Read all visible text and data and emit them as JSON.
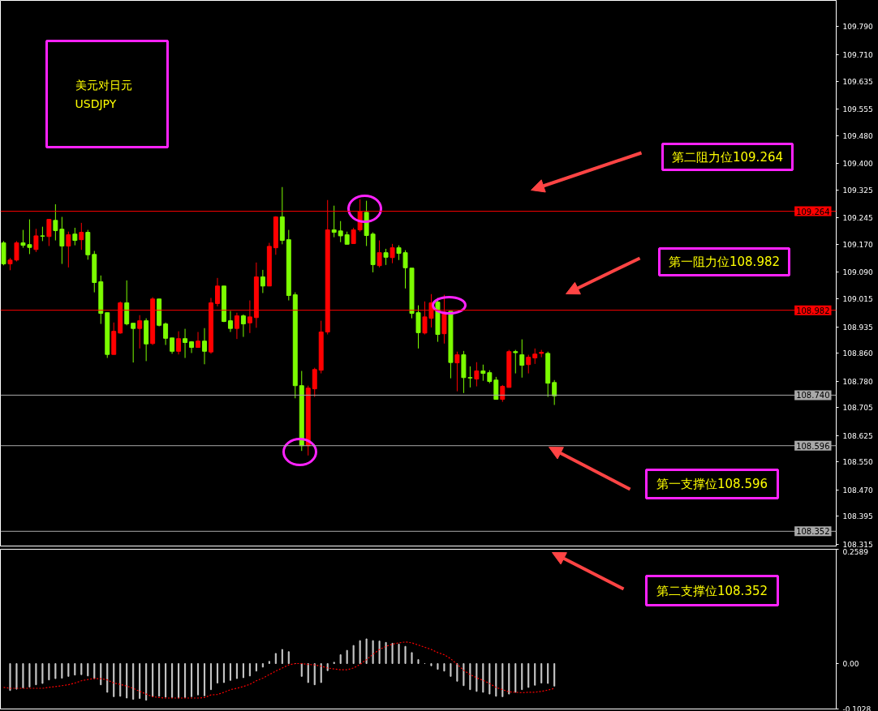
{
  "chart_data": [
    {
      "type": "candlestick",
      "title": "美元对日元",
      "subtitle": "USDJPY",
      "tick_labels": "y",
      "categories": [
        null,
        null,
        null,
        null,
        null,
        null,
        null,
        null,
        null,
        null,
        null,
        null,
        null,
        null,
        null,
        null,
        null,
        null,
        null,
        null,
        null,
        null,
        null,
        null,
        null,
        null,
        null,
        null,
        null,
        null,
        null,
        null,
        null,
        null,
        null,
        null,
        null,
        null,
        null,
        null,
        null,
        null,
        null,
        null,
        null,
        null,
        null,
        null,
        null,
        null,
        null,
        null,
        null,
        null,
        null,
        null,
        null,
        null,
        null,
        null,
        null,
        null,
        null,
        null,
        null,
        null,
        null,
        null,
        null,
        null,
        null,
        null,
        null,
        null,
        null,
        null,
        null,
        null,
        null,
        null,
        null,
        null,
        null,
        null,
        null,
        null,
        null,
        null,
        null,
        null,
        null,
        null,
        null,
        null,
        null,
        null,
        null,
        null,
        null,
        null,
        null,
        null,
        null,
        null,
        null,
        null,
        null,
        null,
        null,
        null,
        null,
        null,
        null,
        null,
        null,
        null,
        null,
        null,
        null,
        null,
        null,
        null,
        null,
        null,
        null,
        null,
        null,
        null,
        null
      ],
      "ohlc": [
        [
          109.174,
          109.179,
          109.11,
          109.114
        ],
        [
          109.114,
          109.131,
          109.096,
          109.125
        ],
        [
          109.125,
          109.179,
          109.121,
          109.174
        ],
        [
          109.174,
          109.211,
          109.16,
          109.167
        ],
        [
          109.169,
          109.241,
          109.142,
          109.161
        ],
        [
          109.155,
          109.214,
          109.148,
          109.194
        ],
        [
          109.194,
          109.22,
          109.179,
          109.193
        ],
        [
          109.192,
          109.241,
          109.165,
          109.241
        ],
        [
          109.238,
          109.284,
          109.181,
          109.209
        ],
        [
          109.213,
          109.248,
          109.114,
          109.165
        ],
        [
          109.165,
          109.206,
          109.104,
          109.197
        ],
        [
          109.199,
          109.217,
          109.167,
          109.181
        ],
        [
          109.183,
          109.231,
          109.154,
          109.204
        ],
        [
          109.204,
          109.211,
          109.126,
          109.14
        ],
        [
          109.141,
          109.151,
          109.033,
          109.061
        ],
        [
          109.063,
          109.081,
          108.943,
          108.973
        ],
        [
          108.975,
          108.975,
          108.846,
          108.856
        ],
        [
          108.856,
          108.947,
          108.856,
          108.922
        ],
        [
          108.917,
          109.007,
          108.915,
          109.003
        ],
        [
          109.003,
          109.067,
          108.939,
          108.943
        ],
        [
          108.945,
          108.945,
          108.833,
          108.93
        ],
        [
          108.93,
          108.968,
          108.873,
          108.952
        ],
        [
          108.952,
          108.959,
          108.837,
          108.886
        ],
        [
          108.887,
          109.019,
          108.883,
          109.014
        ],
        [
          109.014,
          109.014,
          108.936,
          108.939
        ],
        [
          108.943,
          108.947,
          108.883,
          108.902
        ],
        [
          108.903,
          108.903,
          108.858,
          108.865
        ],
        [
          108.865,
          108.922,
          108.856,
          108.901
        ],
        [
          108.901,
          108.929,
          108.846,
          108.89
        ],
        [
          108.892,
          108.894,
          108.86,
          108.876
        ],
        [
          108.876,
          108.92,
          108.876,
          108.894
        ],
        [
          108.894,
          108.931,
          108.828,
          108.865
        ],
        [
          108.863,
          109.017,
          108.858,
          109.003
        ],
        [
          109.001,
          109.074,
          108.993,
          109.051
        ],
        [
          109.051,
          109.051,
          108.948,
          108.95
        ],
        [
          108.952,
          108.98,
          108.92,
          108.93
        ],
        [
          108.93,
          108.975,
          108.9,
          108.966
        ],
        [
          108.966,
          108.97,
          108.906,
          108.943
        ],
        [
          108.946,
          109.01,
          108.917,
          108.963
        ],
        [
          108.961,
          109.118,
          108.932,
          109.077
        ],
        [
          109.077,
          109.097,
          109.031,
          109.051
        ],
        [
          109.051,
          109.174,
          109.051,
          109.164
        ],
        [
          109.16,
          109.25,
          109.14,
          109.248
        ],
        [
          109.248,
          109.333,
          109.17,
          109.181
        ],
        [
          109.183,
          109.211,
          109.01,
          109.024
        ],
        [
          109.026,
          109.033,
          108.731,
          108.767
        ],
        [
          108.767,
          108.809,
          108.581,
          108.596
        ],
        [
          108.596,
          108.767,
          108.568,
          108.76
        ],
        [
          108.758,
          108.818,
          108.735,
          108.813
        ],
        [
          108.811,
          108.952,
          108.802,
          108.92
        ],
        [
          108.92,
          109.296,
          108.913,
          109.211
        ],
        [
          109.211,
          109.28,
          109.19,
          109.204
        ],
        [
          109.208,
          109.236,
          109.176,
          109.194
        ],
        [
          109.197,
          109.206,
          109.17,
          109.17
        ],
        [
          109.172,
          109.217,
          109.172,
          109.211
        ],
        [
          109.211,
          109.298,
          109.206,
          109.263
        ],
        [
          109.261,
          109.294,
          109.165,
          109.195
        ],
        [
          109.199,
          109.204,
          109.09,
          109.112
        ],
        [
          109.109,
          109.181,
          109.104,
          109.146
        ],
        [
          109.146,
          109.157,
          109.111,
          109.133
        ],
        [
          109.132,
          109.171,
          109.116,
          109.16
        ],
        [
          109.16,
          109.167,
          109.125,
          109.144
        ],
        [
          109.146,
          109.153,
          109.044,
          109.103
        ],
        [
          109.102,
          109.102,
          108.959,
          108.973
        ],
        [
          108.975,
          108.996,
          108.873,
          108.918
        ],
        [
          108.917,
          109.007,
          108.913,
          108.963
        ],
        [
          108.959,
          109.028,
          108.933,
          109.003
        ],
        [
          109.005,
          109.017,
          108.892,
          108.913
        ],
        [
          108.915,
          109.026,
          108.887,
          108.977
        ],
        [
          108.979,
          108.979,
          108.788,
          108.833
        ],
        [
          108.832,
          108.864,
          108.751,
          108.855
        ],
        [
          108.855,
          108.866,
          108.746,
          108.79
        ],
        [
          108.79,
          108.822,
          108.762,
          108.789
        ],
        [
          108.786,
          108.834,
          108.765,
          108.809
        ],
        [
          108.809,
          108.827,
          108.781,
          108.802
        ],
        [
          108.804,
          108.811,
          108.774,
          108.779
        ],
        [
          108.783,
          108.792,
          108.728,
          108.728
        ],
        [
          108.728,
          108.769,
          108.721,
          108.765
        ],
        [
          108.762,
          108.869,
          108.762,
          108.864
        ],
        [
          108.864,
          108.869,
          108.802,
          108.861
        ],
        [
          108.855,
          108.899,
          108.79,
          108.825
        ],
        [
          108.827,
          108.855,
          108.802,
          108.848
        ],
        [
          108.846,
          108.873,
          108.829,
          108.857
        ],
        [
          108.859,
          108.869,
          108.848,
          108.862
        ],
        [
          108.859,
          108.864,
          108.735,
          108.774
        ],
        [
          108.776,
          108.783,
          108.712,
          108.738
        ],
        null,
        null,
        null,
        null,
        null,
        null,
        null,
        null,
        null,
        null,
        null,
        null,
        null,
        null,
        null,
        null,
        null,
        null,
        null,
        null,
        null,
        null,
        null,
        null,
        null,
        null,
        null,
        null,
        null,
        null,
        null,
        null,
        null,
        null,
        null,
        null,
        null,
        null,
        null,
        null,
        null,
        null,
        null
      ],
      "colors": [
        "#7cfc00",
        "#ff0000",
        "#ff0000",
        "#7cfc00",
        "#7cfc00",
        "#ff0000",
        "#7cfc00",
        "#ff0000",
        "#7cfc00",
        "#7cfc00",
        "#ff0000",
        "#7cfc00",
        "#ff0000",
        "#7cfc00",
        "#7cfc00",
        "#7cfc00",
        "#7cfc00",
        "#ff0000",
        "#ff0000",
        "#7cfc00",
        "#7cfc00",
        "#ff0000",
        "#7cfc00",
        "#ff0000",
        "#7cfc00",
        "#7cfc00",
        "#7cfc00",
        "#ff0000",
        "#7cfc00",
        "#7cfc00",
        "#ff0000",
        "#7cfc00",
        "#ff0000",
        "#ff0000",
        "#7cfc00",
        "#7cfc00",
        "#ff0000",
        "#7cfc00",
        "#ff0000",
        "#ff0000",
        "#7cfc00",
        "#ff0000",
        "#ff0000",
        "#7cfc00",
        "#7cfc00",
        "#7cfc00",
        "#7cfc00",
        "#ff0000",
        "#ff0000",
        "#ff0000",
        "#ff0000",
        "#7cfc00",
        "#7cfc00",
        "#7cfc00",
        "#ff0000",
        "#ff0000",
        "#7cfc00",
        "#7cfc00",
        "#ff0000",
        "#7cfc00",
        "#ff0000",
        "#7cfc00",
        "#7cfc00",
        "#7cfc00",
        "#7cfc00",
        "#ff0000",
        "#ff0000",
        "#7cfc00",
        "#ff0000",
        "#7cfc00",
        "#ff0000",
        "#7cfc00",
        "#7cfc00",
        "#ff0000",
        "#7cfc00",
        "#7cfc00",
        "#7cfc00",
        "#ff0000",
        "#ff0000",
        "#7cfc00",
        "#7cfc00",
        "#ff0000",
        "#ff0000",
        "#ff0000",
        "#7cfc00",
        "#7cfc00",
        null,
        null,
        null,
        null,
        null,
        null,
        null,
        null,
        null,
        null,
        null,
        null,
        null,
        null,
        null,
        null,
        null,
        null,
        null,
        null,
        null,
        null,
        null,
        null,
        null,
        null,
        null,
        null,
        null,
        null,
        null,
        null,
        null,
        null,
        null,
        null,
        null,
        null,
        null,
        null,
        null,
        null,
        null
      ],
      "ylim": [
        108.31,
        109.865
      ],
      "yticks": [
        {
          "value": 109.79,
          "label": "109.790"
        },
        {
          "value": 109.71,
          "label": "109.710"
        },
        {
          "value": 109.635,
          "label": "109.635"
        },
        {
          "value": 109.555,
          "label": "109.555"
        },
        {
          "value": 109.48,
          "label": "109.480"
        },
        {
          "value": 109.4,
          "label": "109.400"
        },
        {
          "value": 109.325,
          "label": "109.325"
        },
        {
          "value": 109.245,
          "label": "109.245"
        },
        {
          "value": 109.17,
          "label": "109.170"
        },
        {
          "value": 109.09,
          "label": "109.090"
        },
        {
          "value": 109.015,
          "label": "109.015"
        },
        {
          "value": 108.935,
          "label": "108.935"
        },
        {
          "value": 108.86,
          "label": "108.860"
        },
        {
          "value": 108.78,
          "label": "108.780"
        },
        {
          "value": 108.705,
          "label": "108.705"
        },
        {
          "value": 108.625,
          "label": "108.625"
        },
        {
          "value": 108.55,
          "label": "108.550"
        },
        {
          "value": 108.47,
          "label": "108.470"
        },
        {
          "value": 108.395,
          "label": "108.395"
        },
        {
          "value": 108.315,
          "label": "108.315"
        }
      ],
      "ref_lines": [
        {
          "axis": "y",
          "value": 109.264,
          "label": "109.264",
          "color": "#ff0000"
        },
        {
          "axis": "y",
          "value": 108.982,
          "label": "108.982",
          "color": "#ff0000"
        },
        {
          "axis": "y",
          "value": 108.74,
          "label": "108.740",
          "color": "#a9a9a9"
        },
        {
          "axis": "y",
          "value": 108.596,
          "label": "108.596",
          "color": "#a9a9a9"
        },
        {
          "axis": "y",
          "value": 108.352,
          "label": "108.352",
          "color": "#a9a9a9"
        }
      ],
      "annotations": [
        "第二阻力位109.264",
        "第一阻力位108.982",
        "第一支撑位108.596",
        "第二支撑位108.352"
      ]
    },
    {
      "type": "bar",
      "tick_labels": "y",
      "categories": [
        null,
        null,
        null,
        null,
        null,
        null,
        null,
        null,
        null,
        null,
        null,
        null,
        null,
        null,
        null,
        null,
        null,
        null,
        null,
        null,
        null,
        null,
        null,
        null,
        null,
        null,
        null,
        null,
        null,
        null,
        null,
        null,
        null,
        null,
        null,
        null,
        null,
        null,
        null,
        null,
        null,
        null,
        null,
        null,
        null,
        null,
        null,
        null,
        null,
        null,
        null,
        null,
        null,
        null,
        null,
        null,
        null,
        null,
        null,
        null,
        null,
        null,
        null,
        null,
        null,
        null,
        null,
        null,
        null,
        null,
        null,
        null,
        null,
        null,
        null,
        null,
        null,
        null,
        null,
        null,
        null,
        null,
        null,
        null,
        null,
        null,
        null,
        null,
        null,
        null,
        null,
        null,
        null,
        null,
        null,
        null,
        null,
        null,
        null,
        null,
        null,
        null,
        null,
        null,
        null,
        null,
        null,
        null,
        null,
        null,
        null,
        null,
        null,
        null,
        null,
        null,
        null,
        null,
        null,
        null,
        null,
        null,
        null,
        null,
        null,
        null,
        null,
        null,
        null
      ],
      "ylim": [
        -0.1028,
        0.2589
      ],
      "yticks": [
        0.2589,
        {
          "value": 0,
          "label": "0.00"
        },
        -0.1028
      ],
      "series": [
        {
          "type": "bar",
          "color": "#c8c8c8",
          "values": [
            null,
            -0.061,
            -0.058,
            -0.055,
            -0.053,
            -0.048,
            -0.045,
            -0.037,
            -0.034,
            -0.033,
            -0.029,
            -0.026,
            -0.025,
            -0.028,
            -0.034,
            -0.048,
            -0.065,
            -0.075,
            -0.074,
            -0.078,
            -0.081,
            -0.079,
            -0.083,
            -0.075,
            -0.074,
            -0.076,
            -0.077,
            -0.078,
            -0.077,
            -0.075,
            -0.071,
            -0.073,
            -0.059,
            -0.044,
            -0.043,
            -0.038,
            -0.034,
            -0.032,
            -0.028,
            -0.017,
            -0.008,
            0.005,
            0.023,
            0.032,
            0.027,
            0.0,
            -0.029,
            -0.043,
            -0.048,
            -0.043,
            -0.016,
            0.003,
            0.02,
            0.03,
            0.041,
            0.052,
            0.056,
            0.052,
            0.051,
            0.048,
            0.046,
            0.044,
            0.039,
            0.025,
            0.009,
            0.0,
            -0.005,
            -0.013,
            -0.017,
            -0.029,
            -0.04,
            -0.05,
            -0.059,
            -0.063,
            -0.065,
            -0.069,
            -0.074,
            -0.075,
            -0.069,
            -0.065,
            -0.059,
            -0.054,
            -0.049,
            -0.044,
            -0.045,
            -0.051,
            null,
            null,
            null,
            null,
            null,
            null,
            null,
            null,
            null,
            null,
            null,
            null,
            null,
            null,
            null,
            null,
            null,
            null,
            null,
            null,
            null,
            null,
            null,
            null,
            null,
            null,
            null,
            null,
            null,
            null,
            null,
            null,
            null,
            null,
            null,
            null,
            null,
            null,
            null,
            null,
            null,
            null,
            null
          ]
        },
        {
          "type": "line",
          "color": "#ff0000",
          "line_style": "dotted",
          "values": [
            -0.054,
            -0.056,
            -0.056,
            -0.056,
            -0.056,
            -0.056,
            -0.056,
            -0.054,
            -0.052,
            -0.05,
            -0.048,
            -0.044,
            -0.039,
            -0.036,
            -0.034,
            -0.034,
            -0.037,
            -0.044,
            -0.047,
            -0.051,
            -0.056,
            -0.063,
            -0.069,
            -0.075,
            -0.077,
            -0.078,
            -0.078,
            -0.078,
            -0.078,
            -0.078,
            -0.078,
            -0.077,
            -0.071,
            -0.07,
            -0.065,
            -0.059,
            -0.056,
            -0.052,
            -0.047,
            -0.039,
            -0.033,
            -0.025,
            -0.017,
            -0.01,
            -0.003,
            0.0,
            0.0,
            -0.002,
            -0.003,
            -0.006,
            -0.01,
            -0.012,
            -0.014,
            -0.014,
            -0.01,
            -0.002,
            0.009,
            0.021,
            0.032,
            0.039,
            0.044,
            0.047,
            0.049,
            0.047,
            0.042,
            0.037,
            0.032,
            0.025,
            0.02,
            0.011,
            -0.002,
            -0.015,
            -0.025,
            -0.032,
            -0.038,
            -0.045,
            -0.054,
            -0.059,
            -0.064,
            -0.065,
            -0.066,
            -0.065,
            -0.065,
            -0.063,
            -0.06,
            -0.056,
            null,
            null,
            null,
            null,
            null,
            null,
            null,
            null,
            null,
            null,
            null,
            null,
            null,
            null,
            null,
            null,
            null,
            null,
            null,
            null,
            null,
            null,
            null,
            null,
            null,
            null,
            null,
            null,
            null,
            null,
            null,
            null,
            null,
            null,
            null,
            null,
            null,
            null,
            null,
            null,
            null,
            null,
            null
          ]
        }
      ]
    }
  ]
}
